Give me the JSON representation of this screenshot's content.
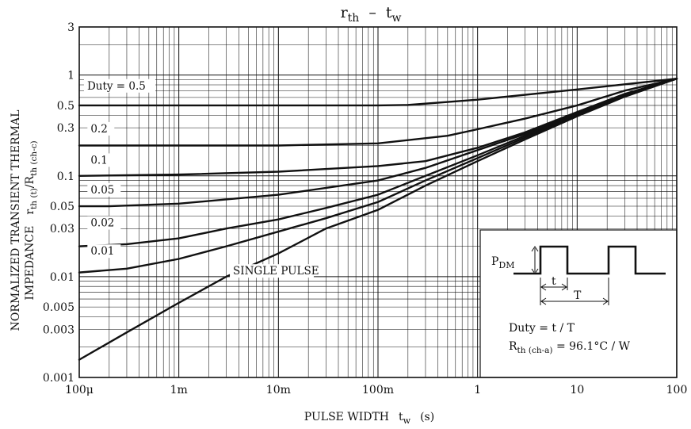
{
  "chart_data": {
    "type": "line",
    "title_main": "r",
    "title_sub": "th",
    "title_dash": "–",
    "title_main2": "t",
    "title_sub2": "w",
    "xlabel_main": "PULSE WIDTH",
    "xlabel_var": "t",
    "xlabel_sub": "w",
    "xlabel_unit": "(s)",
    "ylabel_line1": "NORMALIZED TRANSIENT THERMAL",
    "ylabel_line2": "IMPEDANCE",
    "ylabel_var": "r",
    "ylabel_sub1": "th (t)",
    "ylabel_slash": "/",
    "ylabel_var2": "R",
    "ylabel_sub2": "th (ch-c)",
    "x_scale": "log",
    "y_scale": "log",
    "xlim": [
      0.0001,
      100
    ],
    "ylim": [
      0.001,
      3
    ],
    "grid": true,
    "x_ticks": [
      {
        "value": 0.0001,
        "label": "100μ"
      },
      {
        "value": 0.001,
        "label": "1m"
      },
      {
        "value": 0.01,
        "label": "10m"
      },
      {
        "value": 0.1,
        "label": "100m"
      },
      {
        "value": 1,
        "label": "1"
      },
      {
        "value": 10,
        "label": "10"
      },
      {
        "value": 100,
        "label": "100"
      }
    ],
    "y_ticks": [
      {
        "value": 3,
        "label": "3"
      },
      {
        "value": 1,
        "label": "1"
      },
      {
        "value": 0.5,
        "label": "0.5"
      },
      {
        "value": 0.3,
        "label": "0.3"
      },
      {
        "value": 0.1,
        "label": "0.1"
      },
      {
        "value": 0.05,
        "label": "0.05"
      },
      {
        "value": 0.03,
        "label": "0.03"
      },
      {
        "value": 0.01,
        "label": "0.01"
      },
      {
        "value": 0.005,
        "label": "0.005"
      },
      {
        "value": 0.003,
        "label": "0.003"
      },
      {
        "value": 0.001,
        "label": "0.001"
      }
    ],
    "series": [
      {
        "name": "Duty = 0.5",
        "label_at": [
          0.00012,
          0.72
        ],
        "x": [
          0.0001,
          0.001,
          0.01,
          0.1,
          0.2,
          1,
          10,
          100
        ],
        "y": [
          0.5,
          0.5,
          0.5,
          0.5,
          0.505,
          0.57,
          0.72,
          0.92
        ]
      },
      {
        "name": "0.2",
        "label_at": [
          0.00013,
          0.27
        ],
        "x": [
          0.0001,
          0.001,
          0.01,
          0.1,
          0.5,
          1,
          3,
          10,
          30,
          100
        ],
        "y": [
          0.2,
          0.2,
          0.2,
          0.21,
          0.25,
          0.29,
          0.37,
          0.5,
          0.7,
          0.92
        ]
      },
      {
        "name": "0.1",
        "label_at": [
          0.00013,
          0.132
        ],
        "x": [
          0.0001,
          0.001,
          0.01,
          0.1,
          0.3,
          1,
          3,
          10,
          30,
          100
        ],
        "y": [
          0.1,
          0.103,
          0.11,
          0.125,
          0.14,
          0.19,
          0.27,
          0.43,
          0.65,
          0.92
        ]
      },
      {
        "name": "0.05",
        "label_at": [
          0.00013,
          0.067
        ],
        "x": [
          0.0001,
          0.0002,
          0.001,
          0.01,
          0.1,
          0.3,
          1,
          3,
          10,
          30,
          100
        ],
        "y": [
          0.05,
          0.05,
          0.053,
          0.065,
          0.09,
          0.12,
          0.18,
          0.26,
          0.42,
          0.64,
          0.92
        ]
      },
      {
        "name": "0.02",
        "label_at": [
          0.00013,
          0.0315
        ],
        "x": [
          0.0001,
          0.0003,
          0.001,
          0.003,
          0.01,
          0.03,
          0.1,
          0.3,
          1,
          3,
          10,
          30,
          100
        ],
        "y": [
          0.02,
          0.021,
          0.024,
          0.03,
          0.037,
          0.048,
          0.065,
          0.1,
          0.16,
          0.25,
          0.41,
          0.63,
          0.92
        ]
      },
      {
        "name": "0.01",
        "label_at": [
          0.00013,
          0.0165
        ],
        "x": [
          0.0001,
          0.0003,
          0.001,
          0.003,
          0.01,
          0.03,
          0.1,
          0.3,
          1,
          3,
          10,
          30,
          100
        ],
        "y": [
          0.011,
          0.012,
          0.015,
          0.02,
          0.028,
          0.038,
          0.055,
          0.09,
          0.15,
          0.24,
          0.4,
          0.62,
          0.92
        ]
      },
      {
        "name": "SINGLE PULSE",
        "label_at": [
          0.0035,
          0.0105
        ],
        "x": [
          0.0001,
          0.0003,
          0.001,
          0.003,
          0.01,
          0.03,
          0.1,
          0.3,
          1,
          3,
          10,
          30,
          100
        ],
        "y": [
          0.0015,
          0.0028,
          0.0055,
          0.01,
          0.017,
          0.03,
          0.046,
          0.08,
          0.14,
          0.23,
          0.39,
          0.61,
          0.92
        ]
      }
    ],
    "inset": {
      "pdm_main": "P",
      "pdm_sub": "DM",
      "t_label": "t",
      "T_label": "T",
      "duty_text": "Duty = t / T",
      "rth_main": "R",
      "rth_sub": "th (ch-a)",
      "rth_value": " = 96.1°C / W"
    }
  }
}
